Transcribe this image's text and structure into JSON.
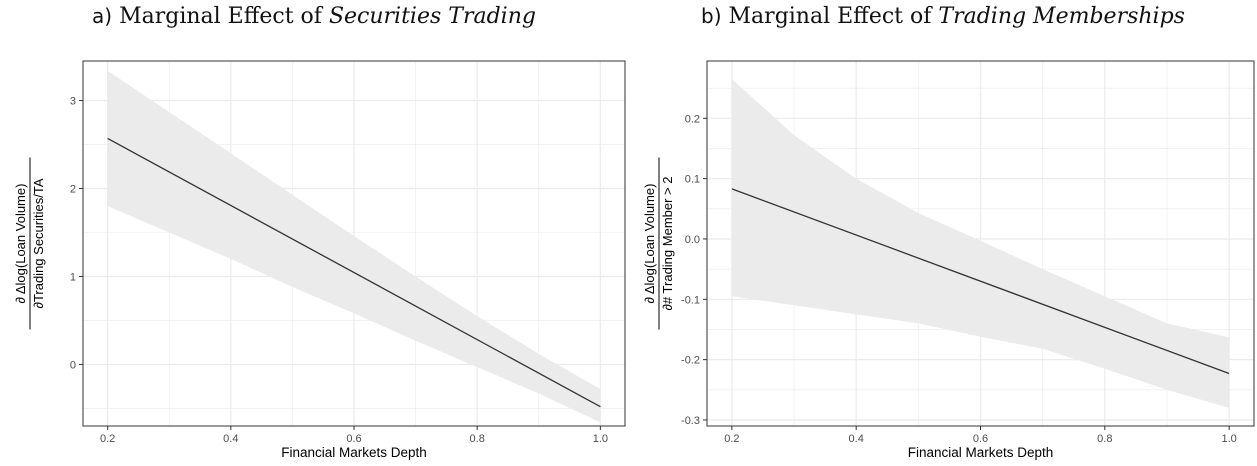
{
  "chart_data": [
    {
      "type": "line",
      "panel_label": "a)",
      "title_prefix": "Marginal Effect of",
      "title_emph": "Securities Trading",
      "xlabel": "Financial Markets Depth",
      "ylabel_numerator": "∂ Δlog(Loan Volume)",
      "ylabel_denominator": "∂Trading Securities/TA",
      "xlim": [
        0.16,
        1.04
      ],
      "ylim": [
        -0.7,
        3.45
      ],
      "xticks": [
        0.2,
        0.4,
        0.6,
        0.8,
        1.0
      ],
      "xtick_labels": [
        "0.2",
        "0.4",
        "0.6",
        "0.8",
        "1.0"
      ],
      "yticks": [
        0,
        1,
        2,
        3
      ],
      "ytick_labels": [
        "0",
        "1",
        "2",
        "3"
      ],
      "series": [
        {
          "x": [
            0.2,
            1.0
          ],
          "y": [
            2.57,
            -0.48
          ],
          "ci_x": [
            0.2,
            0.3,
            0.4,
            0.5,
            0.6,
            0.7,
            0.8,
            0.9,
            1.0
          ],
          "ci_lower": [
            1.8,
            1.5,
            1.2,
            0.88,
            0.58,
            0.27,
            -0.03,
            -0.33,
            -0.66
          ],
          "ci_upper": [
            3.34,
            2.87,
            2.4,
            1.93,
            1.46,
            1.0,
            0.55,
            0.12,
            -0.28
          ]
        }
      ],
      "grid": true,
      "colors": {
        "line": "#333333",
        "band": "#ebebeb",
        "grid": "#ebebeb",
        "border": "#333333"
      }
    },
    {
      "type": "line",
      "panel_label": "b)",
      "title_prefix": "Marginal Effect of",
      "title_emph": "Trading Memberships",
      "xlabel": "Financial Markets Depth",
      "ylabel_numerator": "∂ Δlog(Loan Volume)",
      "ylabel_denominator": "∂# Trading Member > 2",
      "xlim": [
        0.16,
        1.04
      ],
      "ylim": [
        -0.31,
        0.295
      ],
      "xticks": [
        0.2,
        0.4,
        0.6,
        0.8,
        1.0
      ],
      "xtick_labels": [
        "0.2",
        "0.4",
        "0.6",
        "0.8",
        "1.0"
      ],
      "yticks": [
        -0.3,
        -0.2,
        -0.1,
        0.0,
        0.1,
        0.2
      ],
      "ytick_labels": [
        "-0.3",
        "-0.2",
        "-0.1",
        "0.0",
        "0.1",
        "0.2"
      ],
      "series": [
        {
          "x": [
            0.2,
            1.0
          ],
          "y": [
            0.083,
            -0.223
          ],
          "ci_x": [
            0.2,
            0.3,
            0.4,
            0.5,
            0.6,
            0.7,
            0.8,
            0.9,
            1.0
          ],
          "ci_lower": [
            -0.095,
            -0.11,
            -0.125,
            -0.14,
            -0.162,
            -0.182,
            -0.215,
            -0.25,
            -0.28
          ],
          "ci_upper": [
            0.265,
            0.172,
            0.1,
            0.043,
            -0.003,
            -0.05,
            -0.095,
            -0.14,
            -0.163
          ]
        }
      ],
      "grid": true,
      "colors": {
        "line": "#333333",
        "band": "#ebebeb",
        "grid": "#ebebeb",
        "border": "#333333"
      }
    }
  ]
}
